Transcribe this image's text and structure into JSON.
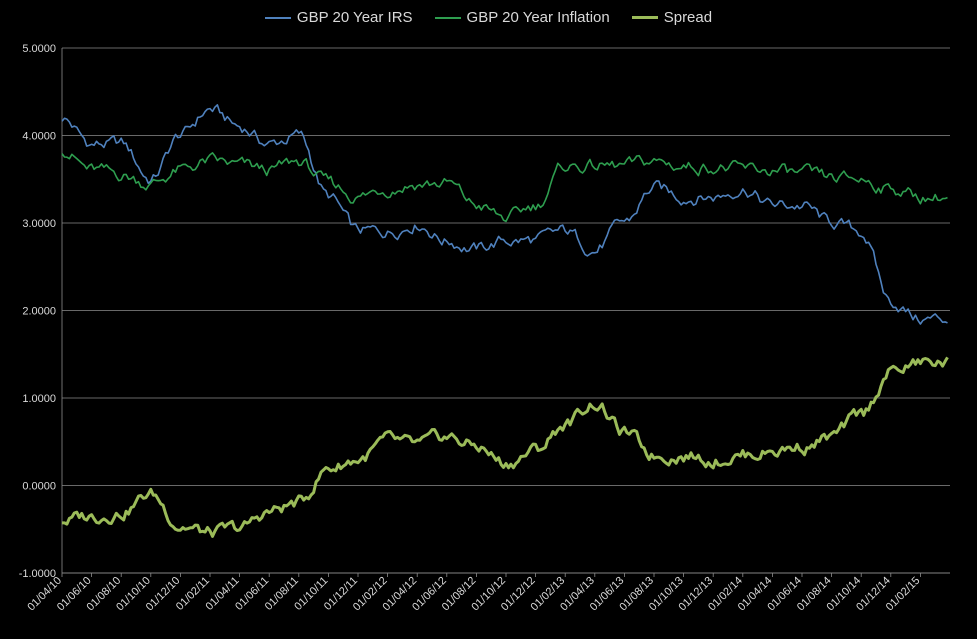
{
  "chart_data": {
    "type": "line",
    "title": "",
    "xlabel": "",
    "ylabel": "",
    "ylim": [
      -1.0,
      5.0
    ],
    "y_ticks": [
      "5.0000",
      "4.0000",
      "3.0000",
      "2.0000",
      "1.0000",
      "0.0000",
      "-1.0000"
    ],
    "y_tick_values": [
      5,
      4,
      3,
      2,
      1,
      0,
      -1
    ],
    "grid": "horizontal",
    "legend_position": "top",
    "categories": [
      "01/04/10",
      "01/06/10",
      "01/08/10",
      "01/10/10",
      "01/12/10",
      "01/02/11",
      "01/04/11",
      "01/06/11",
      "01/08/11",
      "01/10/11",
      "01/12/11",
      "01/02/12",
      "01/04/12",
      "01/06/12",
      "01/08/12",
      "01/10/12",
      "01/12/12",
      "01/02/13",
      "01/04/13",
      "01/06/13",
      "01/08/13",
      "01/10/13",
      "01/12/13",
      "01/02/14",
      "01/04/14",
      "01/06/14",
      "01/08/14",
      "01/10/14",
      "01/12/14",
      "01/02/15"
    ],
    "series": [
      {
        "name": "GBP 20 Year IRS",
        "color": "#4f81bd",
        "width": 1.6,
        "values": [
          4.2,
          3.9,
          3.9,
          3.5,
          4.0,
          4.3,
          4.1,
          3.9,
          4.0,
          3.3,
          2.9,
          2.9,
          3.0,
          2.8,
          2.7,
          2.8,
          2.8,
          2.9,
          2.7,
          3.0,
          3.4,
          3.3,
          3.3,
          3.4,
          3.2,
          3.2,
          3.0,
          2.9,
          2.1,
          1.9
        ]
      },
      {
        "name": "GBP 20 Year Inflation",
        "color": "#2e9e4f",
        "width": 1.6,
        "values": [
          3.85,
          3.6,
          3.55,
          3.45,
          3.6,
          3.7,
          3.65,
          3.6,
          3.7,
          3.45,
          3.3,
          3.4,
          3.45,
          3.45,
          3.2,
          3.05,
          3.2,
          3.65,
          3.65,
          3.65,
          3.7,
          3.65,
          3.65,
          3.6,
          3.6,
          3.55,
          3.5,
          3.5,
          3.4,
          3.3
        ]
      },
      {
        "name": "Spread",
        "color": "#9bbb59",
        "width": 3,
        "values": [
          -0.4,
          -0.35,
          -0.3,
          -0.1,
          -0.45,
          -0.55,
          -0.5,
          -0.3,
          -0.2,
          0.2,
          0.3,
          0.5,
          0.45,
          0.55,
          0.45,
          0.25,
          0.4,
          0.7,
          0.95,
          0.6,
          0.35,
          0.35,
          0.3,
          0.35,
          0.4,
          0.45,
          0.55,
          0.8,
          1.3,
          1.4
        ]
      }
    ]
  }
}
